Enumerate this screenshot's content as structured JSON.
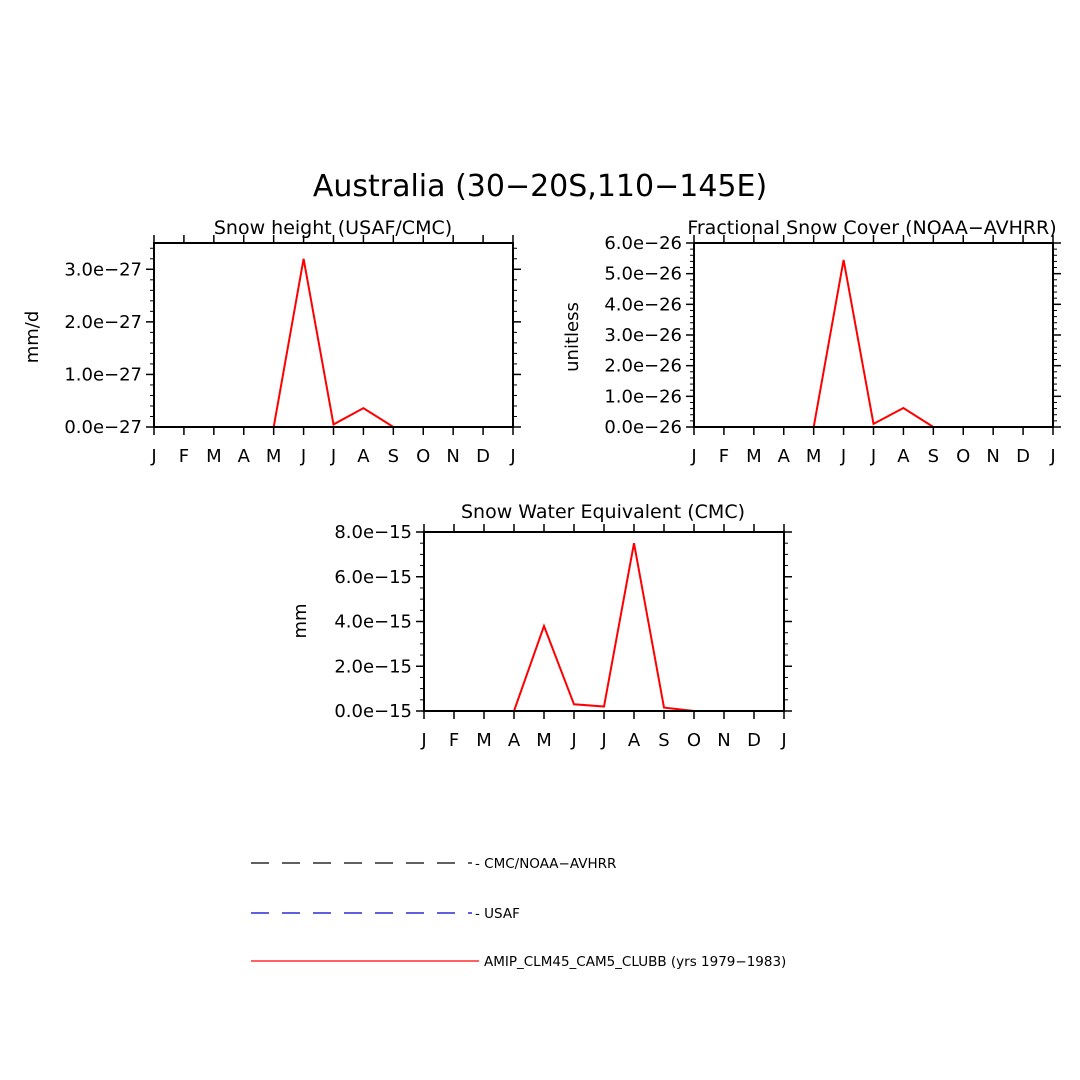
{
  "figure": {
    "title": "Australia (30−20S,110−145E)"
  },
  "chart_data": [
    {
      "type": "line",
      "title": "Snow height (USAF/CMC)",
      "xlabel": "",
      "ylabel": "mm/d",
      "categories": [
        "J",
        "F",
        "M",
        "A",
        "M",
        "J",
        "J",
        "A",
        "S",
        "O",
        "N",
        "D",
        "J"
      ],
      "ylim": [
        0,
        3.5e-27
      ],
      "ytick_values": [
        0,
        1e-27,
        2e-27,
        3e-27
      ],
      "ytick_labels": [
        "0.0e−27",
        "1.0e−27",
        "2.0e−27",
        "3.0e−27"
      ],
      "series": [
        {
          "name": "AMIP_CLM45_CAM5_CLUBB (yrs 1979−1983)",
          "color": "#ff0000",
          "style": "solid",
          "values": [
            0,
            0,
            0,
            0,
            0,
            3.2e-27,
            5e-29,
            3.6e-28,
            0,
            0,
            0,
            0,
            0
          ]
        },
        {
          "name": "USAF",
          "color": "#0000cc",
          "style": "dashed",
          "values": [
            0,
            0,
            0,
            0,
            0,
            0,
            0,
            0,
            0,
            0,
            0,
            0,
            0
          ]
        },
        {
          "name": "CMC/NOAA−AVHRR",
          "color": "#000000",
          "style": "dashed",
          "values": [
            0,
            0,
            0,
            0,
            0,
            0,
            0,
            0,
            0,
            0,
            0,
            0,
            0
          ]
        }
      ]
    },
    {
      "type": "line",
      "title": "Fractional Snow Cover (NOAA−AVHRR)",
      "xlabel": "",
      "ylabel": "unitless",
      "categories": [
        "J",
        "F",
        "M",
        "A",
        "M",
        "J",
        "J",
        "A",
        "S",
        "O",
        "N",
        "D",
        "J"
      ],
      "ylim": [
        0,
        6e-26
      ],
      "ytick_values": [
        0,
        1e-26,
        2e-26,
        3e-26,
        4e-26,
        5e-26,
        6e-26
      ],
      "ytick_labels": [
        "0.0e−26",
        "1.0e−26",
        "2.0e−26",
        "3.0e−26",
        "4.0e−26",
        "5.0e−26",
        "6.0e−26"
      ],
      "series": [
        {
          "name": "AMIP_CLM45_CAM5_CLUBB (yrs 1979−1983)",
          "color": "#ff0000",
          "style": "solid",
          "values": [
            0,
            0,
            0,
            0,
            0,
            5.45e-26,
            1e-27,
            6.2e-27,
            0,
            0,
            0,
            0,
            0
          ]
        },
        {
          "name": "CMC/NOAA−AVHRR",
          "color": "#000000",
          "style": "dashed",
          "values": [
            0,
            0,
            0,
            0,
            0,
            0,
            0,
            0,
            0,
            0,
            0,
            0,
            0
          ]
        }
      ]
    },
    {
      "type": "line",
      "title": "Snow Water Equivalent (CMC)",
      "xlabel": "",
      "ylabel": "mm",
      "categories": [
        "J",
        "F",
        "M",
        "A",
        "M",
        "J",
        "J",
        "A",
        "S",
        "O",
        "N",
        "D",
        "J"
      ],
      "ylim": [
        0,
        8e-15
      ],
      "ytick_values": [
        0,
        2e-15,
        4e-15,
        6e-15,
        8e-15
      ],
      "ytick_labels": [
        "0.0e−15",
        "2.0e−15",
        "4.0e−15",
        "6.0e−15",
        "8.0e−15"
      ],
      "series": [
        {
          "name": "AMIP_CLM45_CAM5_CLUBB (yrs 1979−1983)",
          "color": "#ff0000",
          "style": "solid",
          "values": [
            0,
            0,
            0,
            0,
            3.8e-15,
            3e-16,
            2e-16,
            7.5e-15,
            1.5e-16,
            0,
            0,
            0,
            0
          ]
        },
        {
          "name": "CMC/NOAA−AVHRR",
          "color": "#000000",
          "style": "dashed",
          "values": [
            0,
            0,
            0,
            0,
            0,
            0,
            0,
            0,
            0,
            0,
            0,
            0,
            0
          ]
        }
      ]
    }
  ],
  "legend": [
    {
      "label": "- CMC/NOAA−AVHRR",
      "color": "#000000",
      "style": "dashed"
    },
    {
      "label": "- USAF",
      "color": "#0000cc",
      "style": "dashed"
    },
    {
      "label": "AMIP_CLM45_CAM5_CLUBB (yrs 1979−1983)",
      "color": "#ff0000",
      "style": "solid"
    }
  ]
}
